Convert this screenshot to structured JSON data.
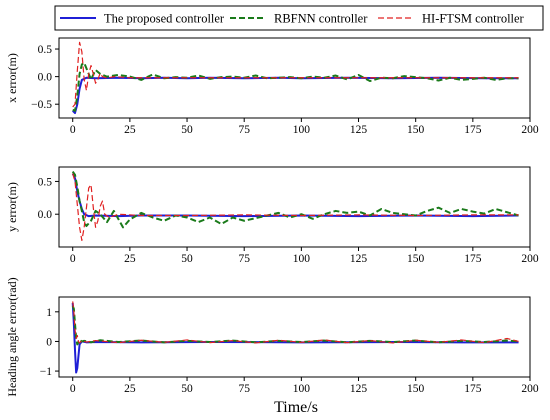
{
  "chart_data": {
    "type": "line",
    "legend": {
      "position": "top",
      "entries": [
        {
          "label": "The proposed controller",
          "color": "#1f1fd6",
          "style": "solid"
        },
        {
          "label": "RBFNN controller",
          "color": "#1a7a1a",
          "style": "dashed"
        },
        {
          "label": "HI-FTSM controller",
          "color": "#e02020",
          "style": "dashed"
        }
      ]
    },
    "xlabel": "Time/s",
    "xlim": [
      -6,
      200
    ],
    "xticks": [
      0,
      25,
      50,
      75,
      100,
      125,
      150,
      175,
      200
    ],
    "grid": false,
    "subplots": [
      {
        "ylabel": "x error(m)",
        "ylim": [
          -0.75,
          0.7
        ],
        "yticks": [
          -0.5,
          0.0,
          0.5
        ],
        "ytick_labels": [
          "−0.5",
          "0.0",
          "0.5"
        ],
        "series": [
          {
            "name": "The proposed controller",
            "x": [
              0,
              1,
              2,
              3,
              4,
              6,
              10,
              20,
              30,
              40,
              50,
              60,
              75,
              90,
              100,
              120,
              140,
              160,
              180,
              195
            ],
            "y": [
              -0.62,
              -0.66,
              -0.5,
              -0.22,
              -0.06,
              -0.02,
              -0.03,
              -0.02,
              -0.03,
              -0.02,
              -0.03,
              -0.02,
              -0.03,
              -0.02,
              -0.03,
              -0.02,
              -0.03,
              -0.02,
              -0.03,
              -0.03
            ]
          },
          {
            "name": "RBFNN controller",
            "x": [
              0,
              1,
              2,
              3,
              4,
              5,
              6,
              8,
              10,
              12,
              15,
              20,
              25,
              30,
              35,
              40,
              45,
              50,
              55,
              60,
              65,
              70,
              75,
              80,
              85,
              90,
              95,
              100,
              105,
              110,
              115,
              120,
              125,
              130,
              135,
              140,
              145,
              150,
              155,
              160,
              165,
              170,
              175,
              180,
              185,
              190,
              195
            ],
            "y": [
              -0.6,
              -0.62,
              -0.35,
              0.05,
              0.22,
              0.25,
              0.15,
              -0.05,
              0.12,
              0.05,
              0.0,
              0.03,
              0.0,
              -0.06,
              0.04,
              -0.03,
              -0.01,
              -0.02,
              0.02,
              -0.04,
              -0.01,
              0.0,
              -0.02,
              0.02,
              -0.03,
              -0.02,
              -0.01,
              -0.03,
              0.0,
              -0.02,
              0.02,
              -0.05,
              0.03,
              -0.08,
              -0.02,
              -0.03,
              0.01,
              -0.01,
              -0.03,
              -0.07,
              -0.02,
              -0.06,
              -0.04,
              -0.02,
              -0.06,
              -0.03,
              -0.03
            ]
          },
          {
            "name": "HI-FTSM controller",
            "x": [
              0,
              1,
              2,
              3,
              4,
              5,
              6,
              7,
              8,
              9,
              10,
              11,
              12,
              13,
              15,
              18,
              25,
              50,
              75,
              100,
              125,
              150,
              175,
              195
            ],
            "y": [
              -0.55,
              -0.5,
              0.1,
              0.62,
              0.45,
              -0.05,
              -0.25,
              0.05,
              0.2,
              0.05,
              -0.12,
              -0.05,
              0.06,
              0.0,
              -0.03,
              0.0,
              -0.02,
              -0.02,
              -0.02,
              -0.02,
              -0.02,
              -0.02,
              -0.02,
              -0.02
            ]
          }
        ]
      },
      {
        "ylabel": "y error(m)",
        "ylim": [
          -0.5,
          0.72
        ],
        "yticks": [
          0.0,
          0.5
        ],
        "ytick_labels": [
          "0.0",
          "0.5"
        ],
        "series": [
          {
            "name": "The proposed controller",
            "x": [
              0,
              1,
              2,
              3,
              4,
              5,
              7,
              10,
              20,
              30,
              50,
              75,
              100,
              125,
              150,
              175,
              195
            ],
            "y": [
              0.62,
              0.55,
              0.35,
              0.2,
              0.08,
              0.0,
              -0.03,
              -0.02,
              -0.03,
              -0.02,
              -0.02,
              -0.03,
              -0.02,
              -0.03,
              -0.02,
              -0.03,
              -0.02
            ]
          },
          {
            "name": "RBFNN controller",
            "x": [
              0,
              1,
              2,
              3,
              4,
              5,
              6,
              8,
              10,
              12,
              15,
              18,
              22,
              25,
              30,
              35,
              40,
              45,
              50,
              55,
              60,
              65,
              70,
              75,
              80,
              85,
              90,
              95,
              100,
              105,
              110,
              115,
              120,
              125,
              130,
              135,
              140,
              145,
              150,
              155,
              160,
              165,
              170,
              175,
              180,
              185,
              190,
              195
            ],
            "y": [
              0.65,
              0.6,
              0.42,
              0.2,
              0.05,
              -0.12,
              -0.18,
              -0.1,
              0.05,
              0.0,
              -0.12,
              0.05,
              -0.2,
              -0.08,
              0.02,
              -0.05,
              -0.1,
              -0.02,
              -0.05,
              -0.12,
              -0.05,
              -0.15,
              -0.05,
              -0.1,
              -0.06,
              -0.02,
              0.02,
              -0.05,
              0.0,
              -0.07,
              0.0,
              0.05,
              0.02,
              0.04,
              -0.02,
              0.08,
              0.02,
              0.0,
              -0.02,
              0.05,
              0.1,
              0.02,
              0.08,
              0.04,
              0.01,
              0.08,
              0.03,
              -0.02
            ]
          },
          {
            "name": "HI-FTSM controller",
            "x": [
              0,
              1,
              2,
              3,
              4,
              5,
              6,
              7,
              8,
              9,
              10,
              11,
              12,
              13,
              14,
              16,
              20,
              30,
              50,
              75,
              100,
              125,
              150,
              175,
              195
            ],
            "y": [
              0.62,
              0.5,
              0.15,
              -0.2,
              -0.4,
              -0.2,
              0.1,
              0.4,
              0.45,
              0.1,
              -0.2,
              -0.1,
              0.12,
              0.2,
              0.0,
              -0.05,
              0.0,
              -0.02,
              -0.02,
              -0.01,
              -0.02,
              -0.01,
              -0.02,
              -0.01,
              -0.01
            ]
          }
        ]
      },
      {
        "ylabel": "Heading angle error(rad)",
        "ylim": [
          -1.2,
          1.5
        ],
        "yticks": [
          -1,
          0,
          1
        ],
        "ytick_labels": [
          "−1",
          "0",
          "1"
        ],
        "series": [
          {
            "name": "The proposed controller",
            "x": [
              0,
              0.5,
              1,
              1.5,
              2,
              2.5,
              3,
              4,
              6,
              10,
              30,
              60,
              100,
              140,
              170,
              195
            ],
            "y": [
              1.3,
              0.6,
              -0.3,
              -1.05,
              -0.9,
              -0.5,
              -0.1,
              0.0,
              -0.03,
              -0.02,
              -0.03,
              -0.02,
              -0.03,
              -0.02,
              -0.03,
              -0.03
            ]
          },
          {
            "name": "RBFNN controller",
            "x": [
              0,
              0.5,
              1,
              1.5,
              2,
              3,
              4,
              5,
              8,
              12,
              20,
              30,
              40,
              50,
              60,
              70,
              80,
              90,
              100,
              110,
              120,
              130,
              140,
              150,
              160,
              170,
              180,
              190,
              195
            ],
            "y": [
              1.2,
              1.1,
              0.6,
              0.1,
              -0.1,
              0.05,
              0.0,
              0.02,
              -0.03,
              0.04,
              -0.02,
              0.03,
              -0.03,
              0.02,
              -0.02,
              0.03,
              -0.03,
              0.02,
              -0.02,
              0.03,
              -0.03,
              0.02,
              -0.02,
              0.03,
              -0.03,
              0.02,
              -0.02,
              0.03,
              0.0
            ]
          },
          {
            "name": "HI-FTSM controller",
            "x": [
              0,
              0.5,
              1,
              1.5,
              2,
              2.5,
              3,
              4,
              6,
              10,
              20,
              30,
              40,
              50,
              60,
              70,
              80,
              90,
              100,
              110,
              120,
              130,
              140,
              150,
              160,
              170,
              180,
              190,
              195
            ],
            "y": [
              1.35,
              1.0,
              0.4,
              0.1,
              0.2,
              0.0,
              -0.05,
              0.03,
              -0.02,
              0.03,
              -0.04,
              0.04,
              -0.03,
              0.05,
              -0.04,
              0.03,
              -0.05,
              0.04,
              -0.03,
              0.05,
              -0.04,
              0.03,
              -0.05,
              0.04,
              -0.03,
              0.05,
              -0.04,
              0.1,
              0.0
            ]
          }
        ]
      }
    ]
  }
}
